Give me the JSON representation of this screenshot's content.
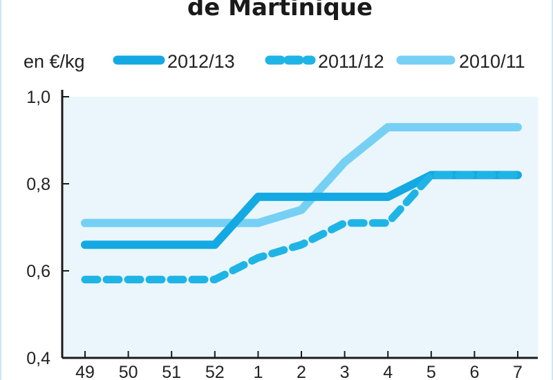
{
  "chart_data": {
    "type": "line",
    "title": "de Martinique",
    "unit_label": "en €/kg",
    "categories": [
      "49",
      "50",
      "51",
      "52",
      "1",
      "2",
      "3",
      "4",
      "5",
      "6",
      "7"
    ],
    "ylim": [
      0.4,
      1.0
    ],
    "yticks": [
      0.4,
      0.6,
      0.8,
      1.0
    ],
    "ytick_labels": [
      "0,4",
      "0,6",
      "0,8",
      "1,0"
    ],
    "grid": false,
    "legend_position": "top",
    "series": [
      {
        "name": "2012/13",
        "color": "#14a9e2",
        "style": "solid",
        "values": [
          0.66,
          0.66,
          0.66,
          0.66,
          0.77,
          0.77,
          0.77,
          0.77,
          0.82,
          0.82,
          0.82
        ]
      },
      {
        "name": "2011/12",
        "color": "#1fb4e6",
        "style": "dashed",
        "values": [
          0.58,
          0.58,
          0.58,
          0.58,
          0.63,
          0.66,
          0.71,
          0.71,
          0.82,
          0.82,
          0.82
        ]
      },
      {
        "name": "2010/11",
        "color": "#76d0f4",
        "style": "solid",
        "values": [
          0.71,
          0.71,
          0.71,
          0.71,
          0.71,
          0.74,
          0.85,
          0.93,
          0.93,
          0.93,
          0.93
        ]
      }
    ]
  }
}
